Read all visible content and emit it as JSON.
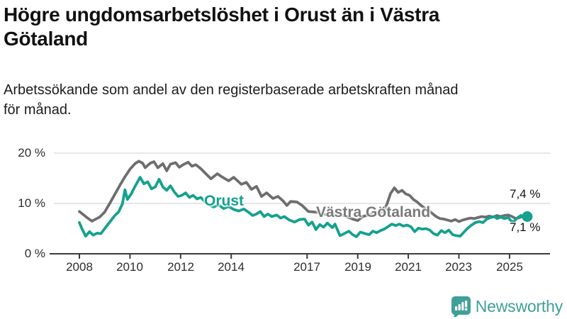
{
  "header": {
    "title_lines": [
      "Högre ungdomsarbetslöshet i Orust än i Västra",
      "Götaland"
    ],
    "subtitle_lines": [
      "Arbetssökande som andel av den registerbaserade arbetskraften månad",
      "för månad."
    ]
  },
  "branding": {
    "logo_text": "Newsworthy",
    "logo_color": "#3fa099",
    "logo_icon": "speech-bubble-bar-chart-exclamation"
  },
  "chart_data": {
    "type": "line",
    "title": "Högre ungdomsarbetslöshet i Orust än i Västra Götaland",
    "subtitle": "Arbetssökande som andel av den registerbaserade arbetskraften månad för månad.",
    "grid": "horizontal",
    "legend_position": "inline-labels-on-lines",
    "x_axis": {
      "unit": "year",
      "range": [
        2008,
        2025.7
      ],
      "ticks": [
        {
          "label": "2008",
          "year": 2008
        },
        {
          "label": "2010",
          "year": 2010
        },
        {
          "label": "2012",
          "year": 2012
        },
        {
          "label": "2014",
          "year": 2014
        },
        {
          "label": "2017",
          "year": 2017
        },
        {
          "label": "2019",
          "year": 2019
        },
        {
          "label": "2021",
          "year": 2021
        },
        {
          "label": "2023",
          "year": 2023
        },
        {
          "label": "2025",
          "year": 2025
        }
      ]
    },
    "y_axis": {
      "unit": "%",
      "range": [
        0,
        21
      ],
      "ticks": [
        {
          "label": "20 %",
          "value": 20
        },
        {
          "label": "10 %",
          "value": 10
        },
        {
          "label": "0 %",
          "value": 0
        }
      ]
    },
    "series": [
      {
        "name": "Västra Götaland",
        "color": "#6e6e6e",
        "end_label": "7,1 %",
        "end_value": 7.1,
        "points": [
          [
            2008.0,
            8.4
          ],
          [
            2008.2,
            7.6
          ],
          [
            2008.35,
            7.0
          ],
          [
            2008.5,
            6.5
          ],
          [
            2008.65,
            6.9
          ],
          [
            2008.8,
            7.3
          ],
          [
            2009.0,
            8.3
          ],
          [
            2009.2,
            10.0
          ],
          [
            2009.4,
            11.8
          ],
          [
            2009.6,
            13.6
          ],
          [
            2009.8,
            15.3
          ],
          [
            2010.0,
            16.8
          ],
          [
            2010.2,
            17.9
          ],
          [
            2010.35,
            18.4
          ],
          [
            2010.5,
            18.0
          ],
          [
            2010.6,
            17.1
          ],
          [
            2010.8,
            18.0
          ],
          [
            2010.95,
            18.3
          ],
          [
            2011.1,
            17.1
          ],
          [
            2011.3,
            17.9
          ],
          [
            2011.45,
            16.5
          ],
          [
            2011.6,
            17.8
          ],
          [
            2011.8,
            18.1
          ],
          [
            2011.95,
            17.2
          ],
          [
            2012.1,
            17.7
          ],
          [
            2012.3,
            18.2
          ],
          [
            2012.45,
            17.4
          ],
          [
            2012.6,
            17.7
          ],
          [
            2012.8,
            16.9
          ],
          [
            2013.0,
            15.9
          ],
          [
            2013.2,
            14.9
          ],
          [
            2013.45,
            15.9
          ],
          [
            2013.6,
            15.4
          ],
          [
            2013.9,
            14.5
          ],
          [
            2014.1,
            15.2
          ],
          [
            2014.4,
            13.8
          ],
          [
            2014.6,
            14.2
          ],
          [
            2014.8,
            12.8
          ],
          [
            2015.0,
            13.4
          ],
          [
            2015.2,
            11.4
          ],
          [
            2015.4,
            12.1
          ],
          [
            2015.65,
            11.0
          ],
          [
            2015.85,
            11.4
          ],
          [
            2016.05,
            10.5
          ],
          [
            2016.2,
            9.6
          ],
          [
            2016.35,
            10.4
          ],
          [
            2016.6,
            10.3
          ],
          [
            2016.8,
            9.6
          ],
          [
            2017.05,
            8.4
          ],
          [
            2017.3,
            8.3
          ],
          [
            2017.5,
            8.2
          ],
          [
            2017.6,
            8.0
          ],
          [
            2017.8,
            7.7
          ],
          [
            2018.0,
            7.9
          ],
          [
            2018.2,
            7.5
          ],
          [
            2018.4,
            7.7
          ],
          [
            2018.6,
            7.3
          ],
          [
            2018.8,
            6.9
          ],
          [
            2019.0,
            6.6
          ],
          [
            2019.2,
            7.4
          ],
          [
            2019.4,
            7.7
          ],
          [
            2019.6,
            8.0
          ],
          [
            2019.8,
            7.9
          ],
          [
            2020.0,
            8.4
          ],
          [
            2020.15,
            9.8
          ],
          [
            2020.3,
            12.0
          ],
          [
            2020.45,
            13.1
          ],
          [
            2020.6,
            12.2
          ],
          [
            2020.75,
            12.6
          ],
          [
            2020.9,
            11.9
          ],
          [
            2021.05,
            11.6
          ],
          [
            2021.2,
            10.8
          ],
          [
            2021.35,
            10.3
          ],
          [
            2021.5,
            9.6
          ],
          [
            2021.65,
            9.1
          ],
          [
            2021.8,
            8.6
          ],
          [
            2021.95,
            8.0
          ],
          [
            2022.1,
            7.4
          ],
          [
            2022.25,
            7.0
          ],
          [
            2022.4,
            6.9
          ],
          [
            2022.55,
            6.7
          ],
          [
            2022.7,
            6.5
          ],
          [
            2022.85,
            6.8
          ],
          [
            2023.0,
            6.4
          ],
          [
            2023.15,
            6.7
          ],
          [
            2023.3,
            6.9
          ],
          [
            2023.45,
            7.1
          ],
          [
            2023.6,
            7.0
          ],
          [
            2023.75,
            7.2
          ],
          [
            2023.9,
            7.4
          ],
          [
            2024.05,
            7.3
          ],
          [
            2024.2,
            7.5
          ],
          [
            2024.35,
            7.3
          ],
          [
            2024.5,
            7.6
          ],
          [
            2024.65,
            7.4
          ],
          [
            2024.8,
            7.6
          ],
          [
            2024.95,
            7.7
          ],
          [
            2025.1,
            7.4
          ],
          [
            2025.25,
            7.0
          ],
          [
            2025.4,
            7.2
          ],
          [
            2025.55,
            7.6
          ],
          [
            2025.7,
            7.1
          ]
        ]
      },
      {
        "name": "Orust",
        "color": "#14a18e",
        "end_label": "7,4 %",
        "end_value": 7.4,
        "end_dot": true,
        "points": [
          [
            2008.0,
            6.2
          ],
          [
            2008.1,
            5.0
          ],
          [
            2008.25,
            3.5
          ],
          [
            2008.4,
            4.4
          ],
          [
            2008.55,
            3.7
          ],
          [
            2008.7,
            4.1
          ],
          [
            2008.85,
            4.0
          ],
          [
            2009.0,
            5.0
          ],
          [
            2009.2,
            6.3
          ],
          [
            2009.4,
            7.6
          ],
          [
            2009.55,
            8.3
          ],
          [
            2009.7,
            9.9
          ],
          [
            2009.8,
            12.7
          ],
          [
            2009.9,
            10.8
          ],
          [
            2010.05,
            11.9
          ],
          [
            2010.2,
            13.4
          ],
          [
            2010.4,
            15.2
          ],
          [
            2010.55,
            13.9
          ],
          [
            2010.7,
            14.3
          ],
          [
            2010.85,
            12.9
          ],
          [
            2011.0,
            13.3
          ],
          [
            2011.15,
            14.8
          ],
          [
            2011.3,
            13.3
          ],
          [
            2011.45,
            12.6
          ],
          [
            2011.6,
            13.5
          ],
          [
            2011.75,
            12.3
          ],
          [
            2011.9,
            11.4
          ],
          [
            2012.05,
            11.6
          ],
          [
            2012.2,
            12.1
          ],
          [
            2012.35,
            11.2
          ],
          [
            2012.5,
            11.6
          ],
          [
            2012.65,
            10.9
          ],
          [
            2012.8,
            11.2
          ],
          [
            2012.95,
            10.4
          ],
          [
            2013.1,
            9.8
          ],
          [
            2013.3,
            9.3
          ],
          [
            2013.5,
            9.7
          ],
          [
            2013.7,
            9.0
          ],
          [
            2013.9,
            9.4
          ],
          [
            2014.1,
            8.8
          ],
          [
            2014.3,
            8.5
          ],
          [
            2014.5,
            8.9
          ],
          [
            2014.7,
            8.2
          ],
          [
            2014.85,
            7.6
          ],
          [
            2015.0,
            7.9
          ],
          [
            2015.15,
            8.4
          ],
          [
            2015.3,
            7.4
          ],
          [
            2015.45,
            7.9
          ],
          [
            2015.6,
            7.4
          ],
          [
            2015.8,
            7.7
          ],
          [
            2015.95,
            7.1
          ],
          [
            2016.1,
            7.4
          ],
          [
            2016.3,
            6.7
          ],
          [
            2016.5,
            6.3
          ],
          [
            2016.7,
            6.8
          ],
          [
            2016.9,
            6.9
          ],
          [
            2017.05,
            5.7
          ],
          [
            2017.2,
            6.3
          ],
          [
            2017.35,
            4.8
          ],
          [
            2017.5,
            5.8
          ],
          [
            2017.65,
            5.3
          ],
          [
            2017.8,
            6.1
          ],
          [
            2018.0,
            5.2
          ],
          [
            2018.1,
            5.9
          ],
          [
            2018.3,
            3.6
          ],
          [
            2018.5,
            4.1
          ],
          [
            2018.65,
            4.5
          ],
          [
            2018.8,
            3.8
          ],
          [
            2018.95,
            3.4
          ],
          [
            2019.1,
            4.3
          ],
          [
            2019.3,
            4.0
          ],
          [
            2019.45,
            3.8
          ],
          [
            2019.6,
            4.5
          ],
          [
            2019.75,
            4.2
          ],
          [
            2019.9,
            4.6
          ],
          [
            2020.05,
            4.9
          ],
          [
            2020.2,
            5.4
          ],
          [
            2020.35,
            5.9
          ],
          [
            2020.5,
            5.6
          ],
          [
            2020.65,
            5.9
          ],
          [
            2020.8,
            5.5
          ],
          [
            2020.95,
            5.7
          ],
          [
            2021.1,
            5.4
          ],
          [
            2021.25,
            4.4
          ],
          [
            2021.4,
            5.1
          ],
          [
            2021.55,
            4.9
          ],
          [
            2021.7,
            5.0
          ],
          [
            2021.85,
            4.7
          ],
          [
            2022.0,
            4.0
          ],
          [
            2022.15,
            3.7
          ],
          [
            2022.3,
            4.6
          ],
          [
            2022.45,
            4.2
          ],
          [
            2022.6,
            4.7
          ],
          [
            2022.75,
            3.8
          ],
          [
            2022.9,
            3.6
          ],
          [
            2023.05,
            3.5
          ],
          [
            2023.2,
            4.3
          ],
          [
            2023.35,
            5.1
          ],
          [
            2023.5,
            5.7
          ],
          [
            2023.65,
            6.2
          ],
          [
            2023.8,
            6.4
          ],
          [
            2023.95,
            6.2
          ],
          [
            2024.1,
            6.9
          ],
          [
            2024.25,
            7.2
          ],
          [
            2024.4,
            7.4
          ],
          [
            2024.5,
            7.0
          ],
          [
            2024.65,
            7.3
          ],
          [
            2024.8,
            7.0
          ],
          [
            2024.95,
            7.2
          ],
          [
            2025.05,
            6.6
          ],
          [
            2025.15,
            6.3
          ],
          [
            2025.3,
            7.1
          ],
          [
            2025.45,
            7.6
          ],
          [
            2025.55,
            7.2
          ],
          [
            2025.7,
            7.4
          ]
        ]
      }
    ]
  }
}
